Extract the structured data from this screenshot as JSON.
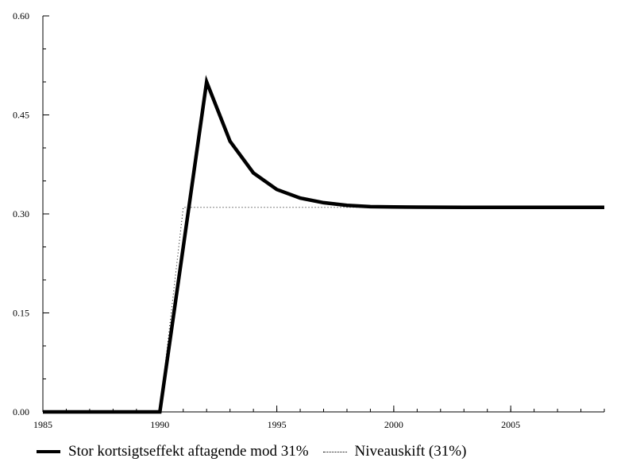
{
  "chart_data": {
    "type": "line",
    "xlim": [
      1985,
      2009
    ],
    "ylim": [
      0,
      0.6
    ],
    "x_ticks": [
      "1985",
      "1990",
      "1995",
      "2000",
      "2005"
    ],
    "y_ticks": [
      "0.00",
      "0.15",
      "0.30",
      "0.45",
      "0.60"
    ],
    "grid": false,
    "legend_position": "bottom",
    "series": [
      {
        "name": "Stor kortsigtseffekt aftagende mod 31%",
        "style": "solid-thick",
        "color": "#000000",
        "x": [
          1985,
          1986,
          1987,
          1988,
          1989,
          1990,
          1991,
          1992,
          1993,
          1994,
          1995,
          1996,
          1997,
          1998,
          1999,
          2000,
          2001,
          2002,
          2003,
          2004,
          2005,
          2006,
          2007,
          2008,
          2009
        ],
        "y": [
          0,
          0,
          0,
          0,
          0,
          0,
          0.25,
          0.5,
          0.41,
          0.362,
          0.337,
          0.324,
          0.317,
          0.313,
          0.311,
          0.3105,
          0.3102,
          0.3101,
          0.31,
          0.31,
          0.31,
          0.31,
          0.31,
          0.31,
          0.31
        ]
      },
      {
        "name": "Niveauskift (31%)",
        "style": "dotted",
        "color": "#000000",
        "x": [
          1985,
          1986,
          1987,
          1988,
          1989,
          1990,
          1991,
          1992,
          1993,
          1994,
          1995,
          1996,
          1997,
          1998,
          1999,
          2000,
          2001,
          2002,
          2003,
          2004,
          2005,
          2006,
          2007,
          2008,
          2009
        ],
        "y": [
          0,
          0,
          0,
          0,
          0,
          0,
          0.31,
          0.31,
          0.31,
          0.31,
          0.31,
          0.31,
          0.31,
          0.31,
          0.31,
          0.31,
          0.31,
          0.31,
          0.31,
          0.31,
          0.31,
          0.31,
          0.31,
          0.31,
          0.31
        ]
      }
    ]
  }
}
